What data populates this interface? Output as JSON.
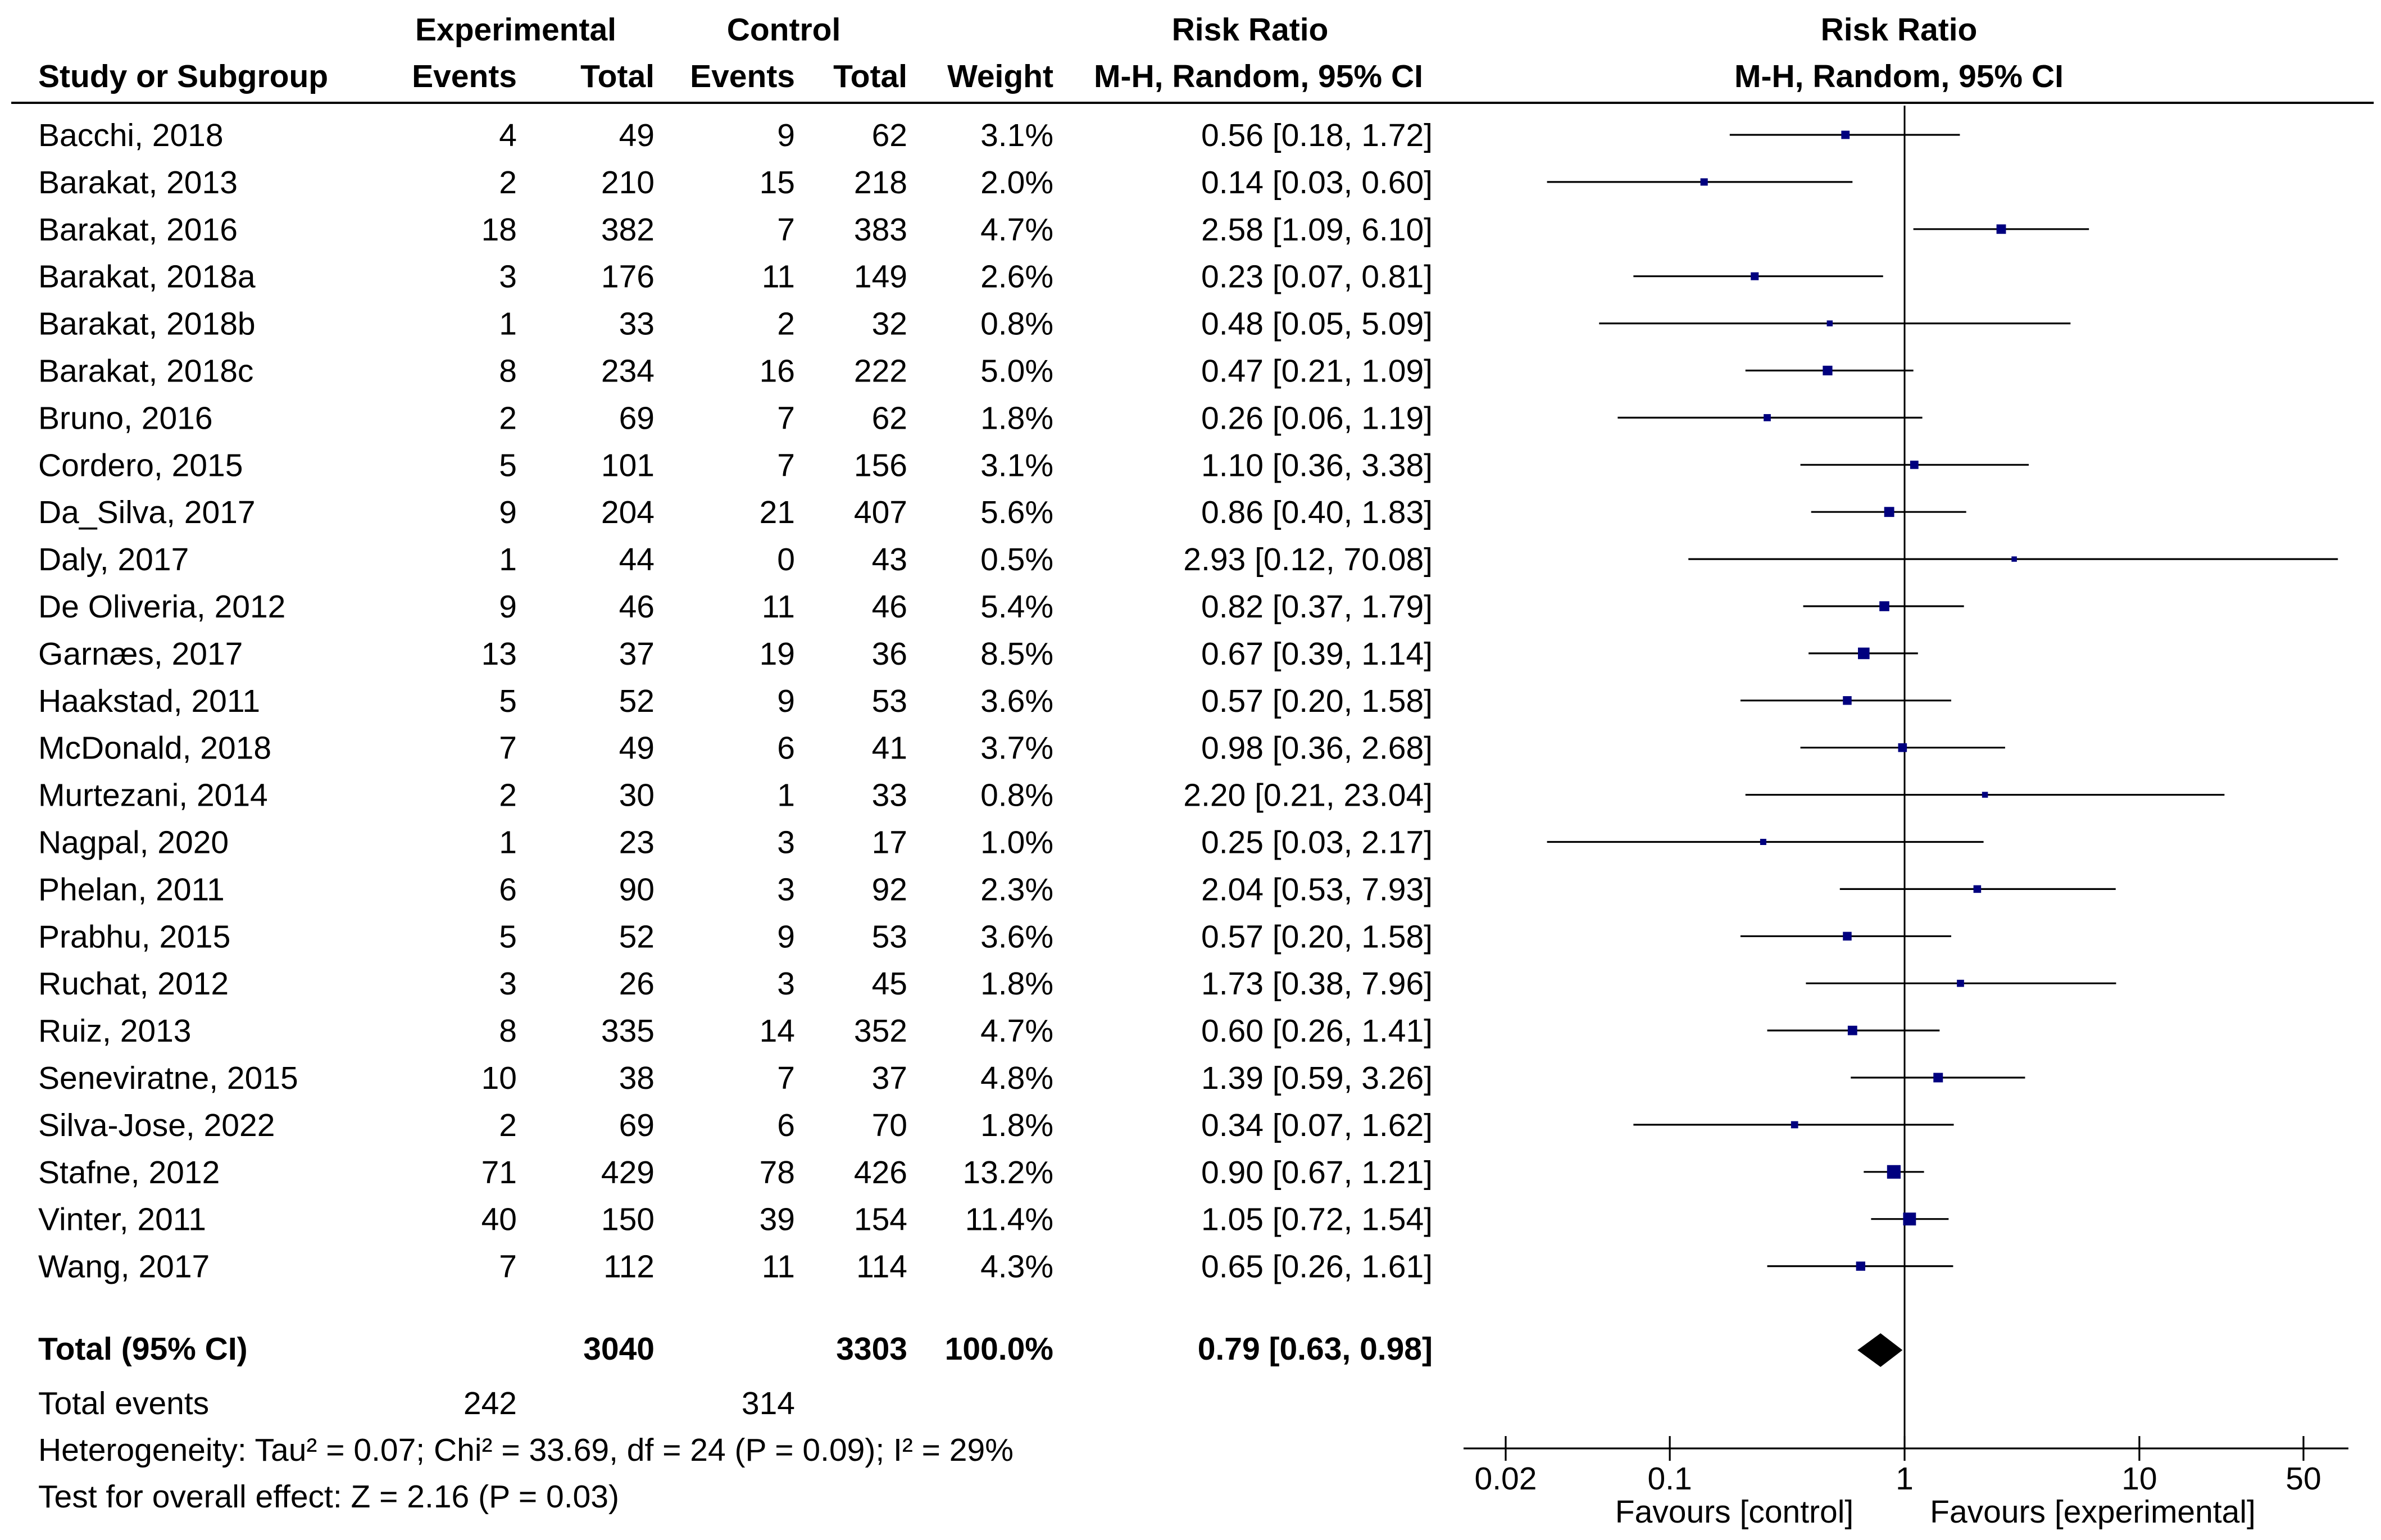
{
  "headers": {
    "group1": "Experimental",
    "group2": "Control",
    "rr_group": "Risk Ratio",
    "rr_method": "M-H, Random, 95% CI",
    "plot_title": "Risk Ratio",
    "plot_method": "M-H, Random, 95% CI",
    "study": "Study or Subgroup",
    "events1": "Events",
    "total1": "Total",
    "events2": "Events",
    "total2": "Total",
    "weight": "Weight"
  },
  "studies": [
    {
      "name": "Bacchi, 2018",
      "e1": "4",
      "t1": "49",
      "e2": "9",
      "t2": "62",
      "weight": "3.1%",
      "ci": "0.56 [0.18, 1.72]",
      "rr": 0.56,
      "lo": 0.18,
      "hi": 1.72
    },
    {
      "name": "Barakat, 2013",
      "e1": "2",
      "t1": "210",
      "e2": "15",
      "t2": "218",
      "weight": "2.0%",
      "ci": "0.14 [0.03, 0.60]",
      "rr": 0.14,
      "lo": 0.03,
      "hi": 0.6
    },
    {
      "name": "Barakat, 2016",
      "e1": "18",
      "t1": "382",
      "e2": "7",
      "t2": "383",
      "weight": "4.7%",
      "ci": "2.58 [1.09, 6.10]",
      "rr": 2.58,
      "lo": 1.09,
      "hi": 6.1
    },
    {
      "name": "Barakat, 2018a",
      "e1": "3",
      "t1": "176",
      "e2": "11",
      "t2": "149",
      "weight": "2.6%",
      "ci": "0.23 [0.07, 0.81]",
      "rr": 0.23,
      "lo": 0.07,
      "hi": 0.81
    },
    {
      "name": "Barakat, 2018b",
      "e1": "1",
      "t1": "33",
      "e2": "2",
      "t2": "32",
      "weight": "0.8%",
      "ci": "0.48 [0.05, 5.09]",
      "rr": 0.48,
      "lo": 0.05,
      "hi": 5.09
    },
    {
      "name": "Barakat, 2018c",
      "e1": "8",
      "t1": "234",
      "e2": "16",
      "t2": "222",
      "weight": "5.0%",
      "ci": "0.47 [0.21, 1.09]",
      "rr": 0.47,
      "lo": 0.21,
      "hi": 1.09
    },
    {
      "name": "Bruno, 2016",
      "e1": "2",
      "t1": "69",
      "e2": "7",
      "t2": "62",
      "weight": "1.8%",
      "ci": "0.26 [0.06, 1.19]",
      "rr": 0.26,
      "lo": 0.06,
      "hi": 1.19
    },
    {
      "name": "Cordero, 2015",
      "e1": "5",
      "t1": "101",
      "e2": "7",
      "t2": "156",
      "weight": "3.1%",
      "ci": "1.10 [0.36, 3.38]",
      "rr": 1.1,
      "lo": 0.36,
      "hi": 3.38
    },
    {
      "name": "Da_Silva, 2017",
      "e1": "9",
      "t1": "204",
      "e2": "21",
      "t2": "407",
      "weight": "5.6%",
      "ci": "0.86 [0.40, 1.83]",
      "rr": 0.86,
      "lo": 0.4,
      "hi": 1.83
    },
    {
      "name": "Daly, 2017",
      "e1": "1",
      "t1": "44",
      "e2": "0",
      "t2": "43",
      "weight": "0.5%",
      "ci": "2.93 [0.12, 70.08]",
      "rr": 2.93,
      "lo": 0.12,
      "hi": 70.08
    },
    {
      "name": "De Oliveria, 2012",
      "e1": "9",
      "t1": "46",
      "e2": "11",
      "t2": "46",
      "weight": "5.4%",
      "ci": "0.82 [0.37, 1.79]",
      "rr": 0.82,
      "lo": 0.37,
      "hi": 1.79
    },
    {
      "name": "Garnæs, 2017",
      "e1": "13",
      "t1": "37",
      "e2": "19",
      "t2": "36",
      "weight": "8.5%",
      "ci": "0.67 [0.39, 1.14]",
      "rr": 0.67,
      "lo": 0.39,
      "hi": 1.14
    },
    {
      "name": "Haakstad, 2011",
      "e1": "5",
      "t1": "52",
      "e2": "9",
      "t2": "53",
      "weight": "3.6%",
      "ci": "0.57 [0.20, 1.58]",
      "rr": 0.57,
      "lo": 0.2,
      "hi": 1.58
    },
    {
      "name": "McDonald, 2018",
      "e1": "7",
      "t1": "49",
      "e2": "6",
      "t2": "41",
      "weight": "3.7%",
      "ci": "0.98 [0.36, 2.68]",
      "rr": 0.98,
      "lo": 0.36,
      "hi": 2.68
    },
    {
      "name": "Murtezani, 2014",
      "e1": "2",
      "t1": "30",
      "e2": "1",
      "t2": "33",
      "weight": "0.8%",
      "ci": "2.20 [0.21, 23.04]",
      "rr": 2.2,
      "lo": 0.21,
      "hi": 23.04
    },
    {
      "name": "Nagpal, 2020",
      "e1": "1",
      "t1": "23",
      "e2": "3",
      "t2": "17",
      "weight": "1.0%",
      "ci": "0.25 [0.03, 2.17]",
      "rr": 0.25,
      "lo": 0.03,
      "hi": 2.17
    },
    {
      "name": "Phelan, 2011",
      "e1": "6",
      "t1": "90",
      "e2": "3",
      "t2": "92",
      "weight": "2.3%",
      "ci": "2.04 [0.53, 7.93]",
      "rr": 2.04,
      "lo": 0.53,
      "hi": 7.93
    },
    {
      "name": "Prabhu, 2015",
      "e1": "5",
      "t1": "52",
      "e2": "9",
      "t2": "53",
      "weight": "3.6%",
      "ci": "0.57 [0.20, 1.58]",
      "rr": 0.57,
      "lo": 0.2,
      "hi": 1.58
    },
    {
      "name": "Ruchat, 2012",
      "e1": "3",
      "t1": "26",
      "e2": "3",
      "t2": "45",
      "weight": "1.8%",
      "ci": "1.73 [0.38, 7.96]",
      "rr": 1.73,
      "lo": 0.38,
      "hi": 7.96
    },
    {
      "name": "Ruiz, 2013",
      "e1": "8",
      "t1": "335",
      "e2": "14",
      "t2": "352",
      "weight": "4.7%",
      "ci": "0.60 [0.26, 1.41]",
      "rr": 0.6,
      "lo": 0.26,
      "hi": 1.41
    },
    {
      "name": "Seneviratne, 2015",
      "e1": "10",
      "t1": "38",
      "e2": "7",
      "t2": "37",
      "weight": "4.8%",
      "ci": "1.39 [0.59, 3.26]",
      "rr": 1.39,
      "lo": 0.59,
      "hi": 3.26
    },
    {
      "name": "Silva-Jose, 2022",
      "e1": "2",
      "t1": "69",
      "e2": "6",
      "t2": "70",
      "weight": "1.8%",
      "ci": "0.34 [0.07, 1.62]",
      "rr": 0.34,
      "lo": 0.07,
      "hi": 1.62
    },
    {
      "name": "Stafne, 2012",
      "e1": "71",
      "t1": "429",
      "e2": "78",
      "t2": "426",
      "weight": "13.2%",
      "ci": "0.90 [0.67, 1.21]",
      "rr": 0.9,
      "lo": 0.67,
      "hi": 1.21
    },
    {
      "name": "Vinter, 2011",
      "e1": "40",
      "t1": "150",
      "e2": "39",
      "t2": "154",
      "weight": "11.4%",
      "ci": "1.05 [0.72, 1.54]",
      "rr": 1.05,
      "lo": 0.72,
      "hi": 1.54
    },
    {
      "name": "Wang, 2017",
      "e1": "7",
      "t1": "112",
      "e2": "11",
      "t2": "114",
      "weight": "4.3%",
      "ci": "0.65 [0.26, 1.61]",
      "rr": 0.65,
      "lo": 0.26,
      "hi": 1.61
    }
  ],
  "total": {
    "label": "Total (95% CI)",
    "t1": "3040",
    "t2": "3303",
    "weight": "100.0%",
    "ci": "0.79 [0.63, 0.98]",
    "rr": 0.79,
    "lo": 0.63,
    "hi": 0.98
  },
  "total_events": {
    "label": "Total events",
    "e1": "242",
    "e2": "314"
  },
  "heterogeneity": "Heterogeneity: Tau² = 0.07; Chi² = 33.69, df = 24 (P = 0.09); I² = 29%",
  "overall_test": "Test for overall effect: Z = 2.16 (P = 0.03)",
  "axis": {
    "ticks": [
      {
        "value": 0.02,
        "label": "0.02"
      },
      {
        "value": 0.1,
        "label": "0.1"
      },
      {
        "value": 1,
        "label": "1"
      },
      {
        "value": 10,
        "label": "10"
      },
      {
        "value": 50,
        "label": "50"
      }
    ],
    "favours_left": "Favours [control]",
    "favours_right": "Favours [experimental]"
  },
  "chart_data": {
    "type": "scatter",
    "subtype": "forest-plot",
    "x_scale": "log",
    "xlim": [
      0.02,
      50
    ],
    "reference_value": 1,
    "columns_x_title": "Risk Ratio",
    "columns_x_method": "M-H, Random, 95% CI",
    "marker_color": "#00007f",
    "summary_color": "#000000"
  }
}
